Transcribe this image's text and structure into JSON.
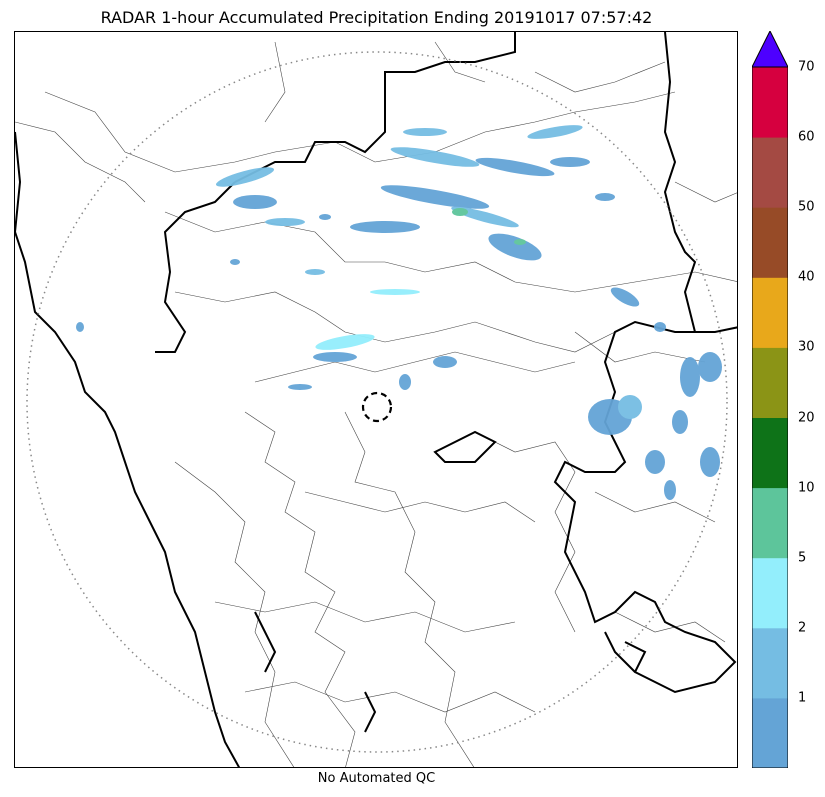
{
  "title": "RADAR 1-hour Accumulated Precipitation Ending 20191017 07:57:42",
  "caption": "No Automated QC",
  "colorbar": {
    "tick_labels": [
      "1",
      "2",
      "5",
      "10",
      "20",
      "30",
      "40",
      "50",
      "60",
      "70"
    ],
    "bins": [
      {
        "color": "#64a4d6"
      },
      {
        "color": "#75bde3"
      },
      {
        "color": "#93eefc"
      },
      {
        "color": "#5dc59b"
      },
      {
        "color": "#0e7318"
      },
      {
        "color": "#8b9416"
      },
      {
        "color": "#e8a81b"
      },
      {
        "color": "#974b27"
      },
      {
        "color": "#a44a43"
      },
      {
        "color": "#d6003f"
      }
    ],
    "over_color": "#4d00ff"
  }
}
